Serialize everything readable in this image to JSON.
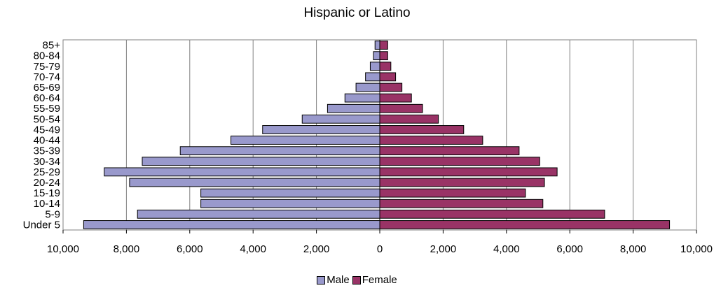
{
  "chart_data": {
    "type": "bar",
    "orientation": "horizontal",
    "title": "Hispanic or Latino",
    "categories": [
      "Under 5",
      "5-9",
      "10-14",
      "15-19",
      "20-24",
      "25-29",
      "30-34",
      "35-39",
      "40-44",
      "45-49",
      "50-54",
      "55-59",
      "60-64",
      "65-69",
      "70-74",
      "75-79",
      "80-84",
      "85+"
    ],
    "series": [
      {
        "name": "Male",
        "color": "#9999cc",
        "values": [
          9350,
          7650,
          5650,
          5650,
          7900,
          8700,
          7500,
          6300,
          4700,
          3700,
          2450,
          1650,
          1100,
          750,
          450,
          300,
          200,
          150
        ]
      },
      {
        "name": "Female",
        "color": "#993366",
        "values": [
          9150,
          7100,
          5150,
          4600,
          5200,
          5600,
          5050,
          4400,
          3250,
          2650,
          1850,
          1350,
          1000,
          700,
          500,
          350,
          250,
          250
        ]
      }
    ],
    "xlim": [
      -10000,
      10000
    ],
    "xticks": [
      "10,000",
      "8,000",
      "6,000",
      "4,000",
      "2,000",
      "0",
      "2,000",
      "4,000",
      "6,000",
      "8,000",
      "10,000"
    ],
    "grid": true,
    "legend_position": "bottom"
  }
}
